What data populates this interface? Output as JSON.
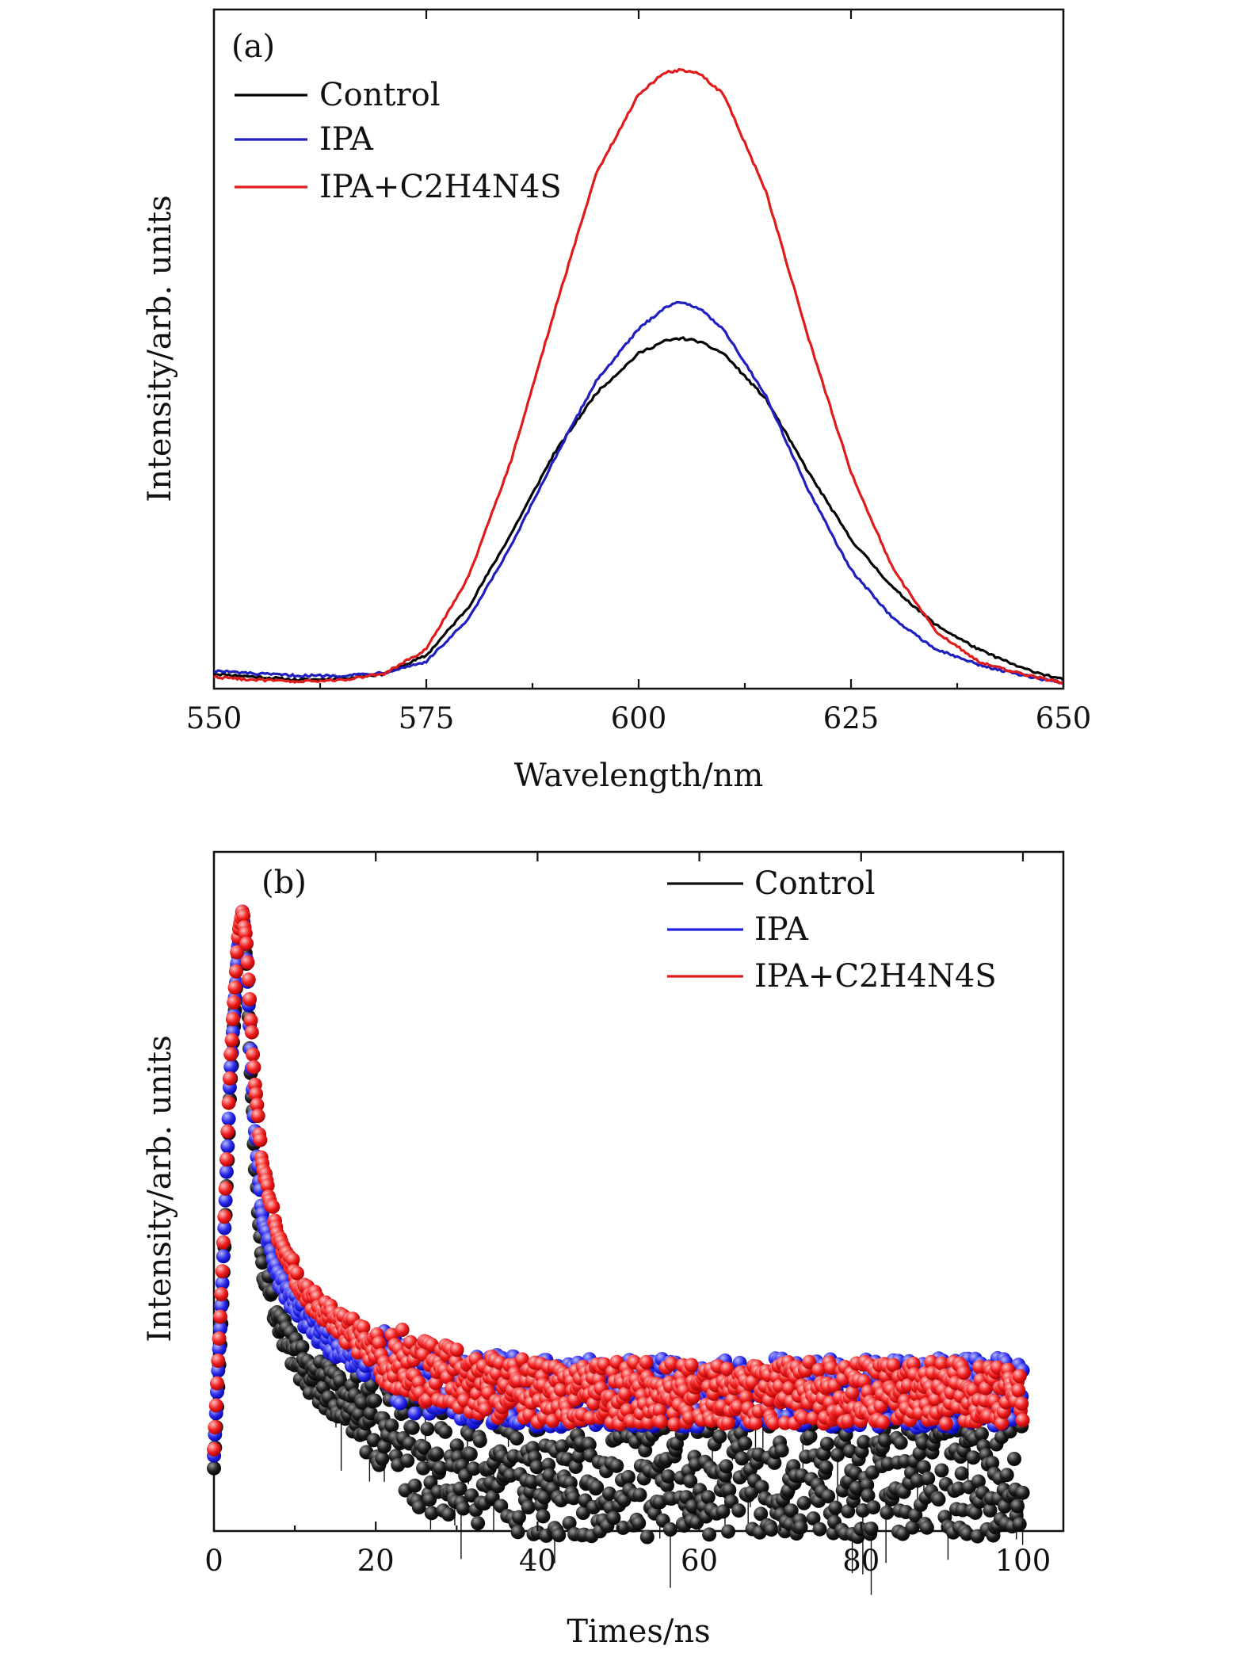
{
  "chart_data": [
    {
      "type": "line",
      "panel_label": "(a)",
      "xlabel": "Wavelength/nm",
      "ylabel": "Intensity/arb. units",
      "xlim": [
        550,
        650
      ],
      "ylim": [
        0,
        1
      ],
      "x_ticks": [
        "550",
        "575",
        "600",
        "625",
        "650"
      ],
      "x_tick_values": [
        550,
        575,
        600,
        625,
        650
      ],
      "y_ticks_labeled": false,
      "legend_position": "top-left",
      "series": [
        {
          "name": "Control",
          "color": "#000000",
          "x": [
            550,
            555,
            560,
            565,
            570,
            575,
            580,
            585,
            590,
            595,
            600,
            603,
            605,
            607,
            610,
            615,
            620,
            625,
            630,
            635,
            640,
            645,
            650
          ],
          "y": [
            0.01,
            0.005,
            0.0,
            0.002,
            0.01,
            0.04,
            0.12,
            0.24,
            0.37,
            0.47,
            0.535,
            0.555,
            0.56,
            0.555,
            0.535,
            0.46,
            0.34,
            0.23,
            0.15,
            0.09,
            0.05,
            0.02,
            0.0
          ]
        },
        {
          "name": "IPA",
          "color": "#1f1fbf",
          "x": [
            550,
            555,
            560,
            565,
            570,
            575,
            580,
            585,
            590,
            595,
            600,
            603,
            605,
            607,
            610,
            615,
            620,
            625,
            630,
            635,
            640,
            645,
            650
          ],
          "y": [
            0.015,
            0.01,
            0.007,
            0.007,
            0.012,
            0.03,
            0.1,
            0.22,
            0.36,
            0.49,
            0.575,
            0.61,
            0.62,
            0.61,
            0.575,
            0.465,
            0.31,
            0.18,
            0.1,
            0.05,
            0.025,
            0.008,
            -0.005
          ]
        },
        {
          "name": "IPA+C2H4N4S",
          "color": "#e01b1b",
          "x": [
            550,
            555,
            560,
            565,
            570,
            575,
            580,
            585,
            590,
            595,
            600,
            603,
            605,
            607,
            610,
            615,
            620,
            625,
            630,
            635,
            640,
            645,
            650
          ],
          "y": [
            0.005,
            0.0,
            -0.003,
            0.0,
            0.01,
            0.05,
            0.17,
            0.36,
            0.6,
            0.83,
            0.96,
            0.995,
            1.0,
            0.995,
            0.96,
            0.8,
            0.56,
            0.34,
            0.18,
            0.08,
            0.03,
            0.01,
            -0.005
          ]
        }
      ],
      "legend": [
        "Control",
        "IPA",
        "IPA+C2H4N4S"
      ]
    },
    {
      "type": "scatter",
      "panel_label": "(b)",
      "xlabel": "Times/ns",
      "ylabel": "Intensity/arb. units",
      "xlim": [
        0,
        105
      ],
      "ylim": [
        0,
        1
      ],
      "x_ticks": [
        "0",
        "20",
        "40",
        "60",
        "80",
        "100"
      ],
      "x_tick_values": [
        0,
        20,
        40,
        60,
        80,
        100
      ],
      "y_ticks_labeled": false,
      "legend_position": "top-right",
      "series": [
        {
          "name": "Control",
          "color": "#111111",
          "x": [
            0,
            1,
            2,
            3,
            3.5,
            4,
            5,
            6,
            8,
            10,
            12,
            15,
            20,
            25,
            30,
            40,
            50,
            60,
            70,
            80,
            90,
            100
          ],
          "y": [
            0.1,
            0.35,
            0.7,
            0.92,
            0.98,
            0.9,
            0.6,
            0.42,
            0.33,
            0.28,
            0.25,
            0.22,
            0.17,
            0.13,
            0.11,
            0.09,
            0.09,
            0.09,
            0.09,
            0.09,
            0.09,
            0.09
          ]
        },
        {
          "name": "IPA",
          "color": "#2020e0",
          "x": [
            0,
            1,
            2,
            3,
            3.5,
            4,
            5,
            6,
            8,
            10,
            12,
            15,
            20,
            25,
            30,
            40,
            50,
            60,
            70,
            80,
            90,
            100
          ],
          "y": [
            0.12,
            0.38,
            0.72,
            0.93,
            0.985,
            0.92,
            0.65,
            0.5,
            0.4,
            0.36,
            0.33,
            0.3,
            0.27,
            0.24,
            0.23,
            0.22,
            0.22,
            0.22,
            0.22,
            0.22,
            0.22,
            0.22
          ]
        },
        {
          "name": "IPA+C2H4N4S",
          "color": "#e01a1a",
          "x": [
            0,
            1,
            2,
            3,
            3.5,
            4,
            5,
            6,
            8,
            10,
            12,
            15,
            20,
            25,
            30,
            40,
            50,
            60,
            70,
            80,
            90,
            100
          ],
          "y": [
            0.13,
            0.4,
            0.74,
            0.95,
            0.99,
            0.94,
            0.72,
            0.58,
            0.47,
            0.41,
            0.37,
            0.33,
            0.29,
            0.26,
            0.24,
            0.22,
            0.22,
            0.22,
            0.22,
            0.22,
            0.22,
            0.22
          ]
        }
      ],
      "legend": [
        "Control",
        "IPA",
        "IPA+C2H4N4S"
      ]
    }
  ]
}
